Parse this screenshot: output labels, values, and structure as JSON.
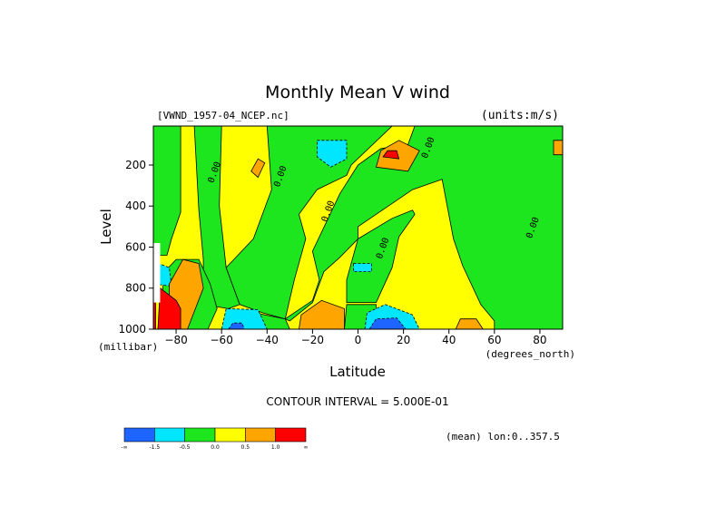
{
  "chart_data": {
    "type": "contour",
    "title": "Monthly Mean V wind",
    "dataset_label": "[VWND_1957-04_NCEP.nc]",
    "units_label": "(units:m/s)",
    "xlabel": "Latitude",
    "x_units": "(degrees_north)",
    "ylabel": "Level",
    "y_units": "(millibar)",
    "xlim": [
      -90,
      90
    ],
    "ylim": [
      1000,
      10
    ],
    "y_inverted": true,
    "x_ticks": [
      -80,
      -60,
      -40,
      -20,
      0,
      20,
      40,
      60,
      80
    ],
    "y_ticks": [
      200,
      400,
      600,
      800,
      1000
    ],
    "contour_interval_text": "CONTOUR INTERVAL = 5.000E-01",
    "mean_note": "(mean) lon:0..357.5",
    "contour_labels": [
      {
        "text": "0.00",
        "x": -62,
        "y": 240
      },
      {
        "text": "0.00",
        "x": -33,
        "y": 260
      },
      {
        "text": "0.00",
        "x": -12,
        "y": 430
      },
      {
        "text": "0.00",
        "x": 12,
        "y": 610
      },
      {
        "text": "0.00",
        "x": 32,
        "y": 120
      },
      {
        "text": "0.00",
        "x": 78,
        "y": 510
      }
    ],
    "colorbar": {
      "colors": [
        "#1e64ff",
        "#00e6ff",
        "#1ee61e",
        "#ffff00",
        "#ffa500",
        "#ff0000"
      ],
      "tick_labels": [
        "-∞",
        "-1.5",
        "-0.5",
        "0.0",
        "0.5",
        "1.0",
        "∞"
      ]
    },
    "regions": {
      "background": {
        "level": 0.25,
        "color": "#ffff00"
      },
      "green": [
        [
          [
            -90,
            10
          ],
          [
            -78,
            10
          ],
          [
            -78,
            430
          ],
          [
            -82,
            560
          ],
          [
            -84,
            640
          ],
          [
            -90,
            640
          ]
        ],
        [
          [
            -72,
            10
          ],
          [
            -60,
            10
          ],
          [
            -61,
            400
          ],
          [
            -58,
            700
          ],
          [
            -52,
            880
          ],
          [
            -57,
            900
          ],
          [
            -68,
            880
          ],
          [
            -68,
            660
          ],
          [
            -70,
            420
          ]
        ],
        [
          [
            -40,
            10
          ],
          [
            15,
            10
          ],
          [
            -3,
            200
          ],
          [
            -5,
            250
          ],
          [
            -18,
            320
          ],
          [
            -26,
            440
          ],
          [
            -23,
            560
          ],
          [
            -28,
            760
          ],
          [
            -32,
            950
          ],
          [
            -42,
            920
          ],
          [
            -52,
            880
          ],
          [
            -58,
            700
          ],
          [
            -46,
            560
          ],
          [
            -38,
            320
          ]
        ],
        [
          [
            25,
            10
          ],
          [
            90,
            10
          ],
          [
            90,
            1000
          ],
          [
            60,
            1000
          ],
          [
            60,
            960
          ],
          [
            54,
            880
          ],
          [
            46,
            690
          ],
          [
            42,
            560
          ],
          [
            37,
            270
          ],
          [
            24,
            320
          ],
          [
            0,
            500
          ],
          [
            0,
            560
          ],
          [
            -8,
            650
          ],
          [
            -15,
            720
          ],
          [
            -20,
            870
          ],
          [
            -30,
            960
          ],
          [
            -32,
            950
          ],
          [
            -20,
            860
          ],
          [
            -17,
            760
          ],
          [
            -20,
            620
          ],
          [
            -8,
            340
          ],
          [
            0,
            200
          ],
          [
            10,
            120
          ],
          [
            22,
            100
          ]
        ],
        [
          [
            0,
            560
          ],
          [
            15,
            460
          ],
          [
            24,
            420
          ],
          [
            25,
            440
          ],
          [
            18,
            550
          ],
          [
            15,
            700
          ],
          [
            8,
            870
          ],
          [
            -5,
            870
          ],
          [
            -5,
            760
          ]
        ],
        [
          [
            -88,
            1000
          ],
          [
            -85,
            720
          ],
          [
            -80,
            660
          ],
          [
            -70,
            660
          ],
          [
            -65,
            780
          ],
          [
            -62,
            900
          ],
          [
            -66,
            1000
          ]
        ],
        [
          [
            -50,
            1000
          ],
          [
            -50,
            910
          ],
          [
            -32,
            950
          ],
          [
            -30,
            1000
          ]
        ],
        [
          [
            -6,
            1000
          ],
          [
            -5,
            880
          ],
          [
            8,
            880
          ],
          [
            8,
            1000
          ]
        ]
      ],
      "cyan": [
        [
          [
            -18,
            80
          ],
          [
            -5,
            80
          ],
          [
            -5,
            170
          ],
          [
            -12,
            210
          ],
          [
            -18,
            160
          ]
        ],
        [
          [
            -2,
            680
          ],
          [
            6,
            680
          ],
          [
            6,
            720
          ],
          [
            -2,
            720
          ]
        ],
        [
          [
            -60,
            1000
          ],
          [
            -58,
            900
          ],
          [
            -44,
            905
          ],
          [
            -40,
            1000
          ]
        ],
        [
          [
            -90,
            670
          ],
          [
            -83,
            700
          ],
          [
            -82,
            790
          ],
          [
            -90,
            780
          ]
        ],
        [
          [
            3,
            1000
          ],
          [
            4,
            920
          ],
          [
            12,
            880
          ],
          [
            24,
            930
          ],
          [
            27,
            1000
          ]
        ]
      ],
      "blue": [
        [
          [
            5,
            1000
          ],
          [
            8,
            950
          ],
          [
            17,
            945
          ],
          [
            21,
            1000
          ]
        ],
        [
          [
            -57,
            1000
          ],
          [
            -55,
            970
          ],
          [
            -51,
            970
          ],
          [
            -50,
            1000
          ]
        ]
      ],
      "orange": [
        [
          [
            8,
            210
          ],
          [
            10,
            130
          ],
          [
            18,
            80
          ],
          [
            27,
            130
          ],
          [
            22,
            230
          ]
        ],
        [
          [
            -47,
            230
          ],
          [
            -44,
            170
          ],
          [
            -41,
            190
          ],
          [
            -44,
            260
          ]
        ],
        [
          [
            -83,
            780
          ],
          [
            -77,
            660
          ],
          [
            -70,
            680
          ],
          [
            -68,
            800
          ],
          [
            -75,
            1000
          ],
          [
            -83,
            1000
          ]
        ],
        [
          [
            -26,
            1000
          ],
          [
            -25,
            930
          ],
          [
            -16,
            860
          ],
          [
            -6,
            900
          ],
          [
            -6,
            1000
          ]
        ],
        [
          [
            43,
            1000
          ],
          [
            45,
            950
          ],
          [
            52,
            950
          ],
          [
            55,
            1000
          ]
        ],
        [
          [
            86,
            80
          ],
          [
            90,
            80
          ],
          [
            90,
            150
          ],
          [
            86,
            150
          ]
        ]
      ],
      "red": [
        [
          [
            11,
            160
          ],
          [
            13,
            130
          ],
          [
            17,
            130
          ],
          [
            18,
            170
          ]
        ],
        [
          [
            -88,
            1000
          ],
          [
            -87,
            800
          ],
          [
            -80,
            860
          ],
          [
            -78,
            900
          ],
          [
            -78,
            1000
          ]
        ],
        [
          [
            -90,
            640
          ],
          [
            -89,
            640
          ],
          [
            -89,
            1000
          ],
          [
            -90,
            1000
          ]
        ]
      ],
      "white": [
        [
          [
            -90,
            580
          ],
          [
            -87,
            580
          ],
          [
            -87,
            870
          ],
          [
            -90,
            870
          ]
        ]
      ]
    }
  }
}
